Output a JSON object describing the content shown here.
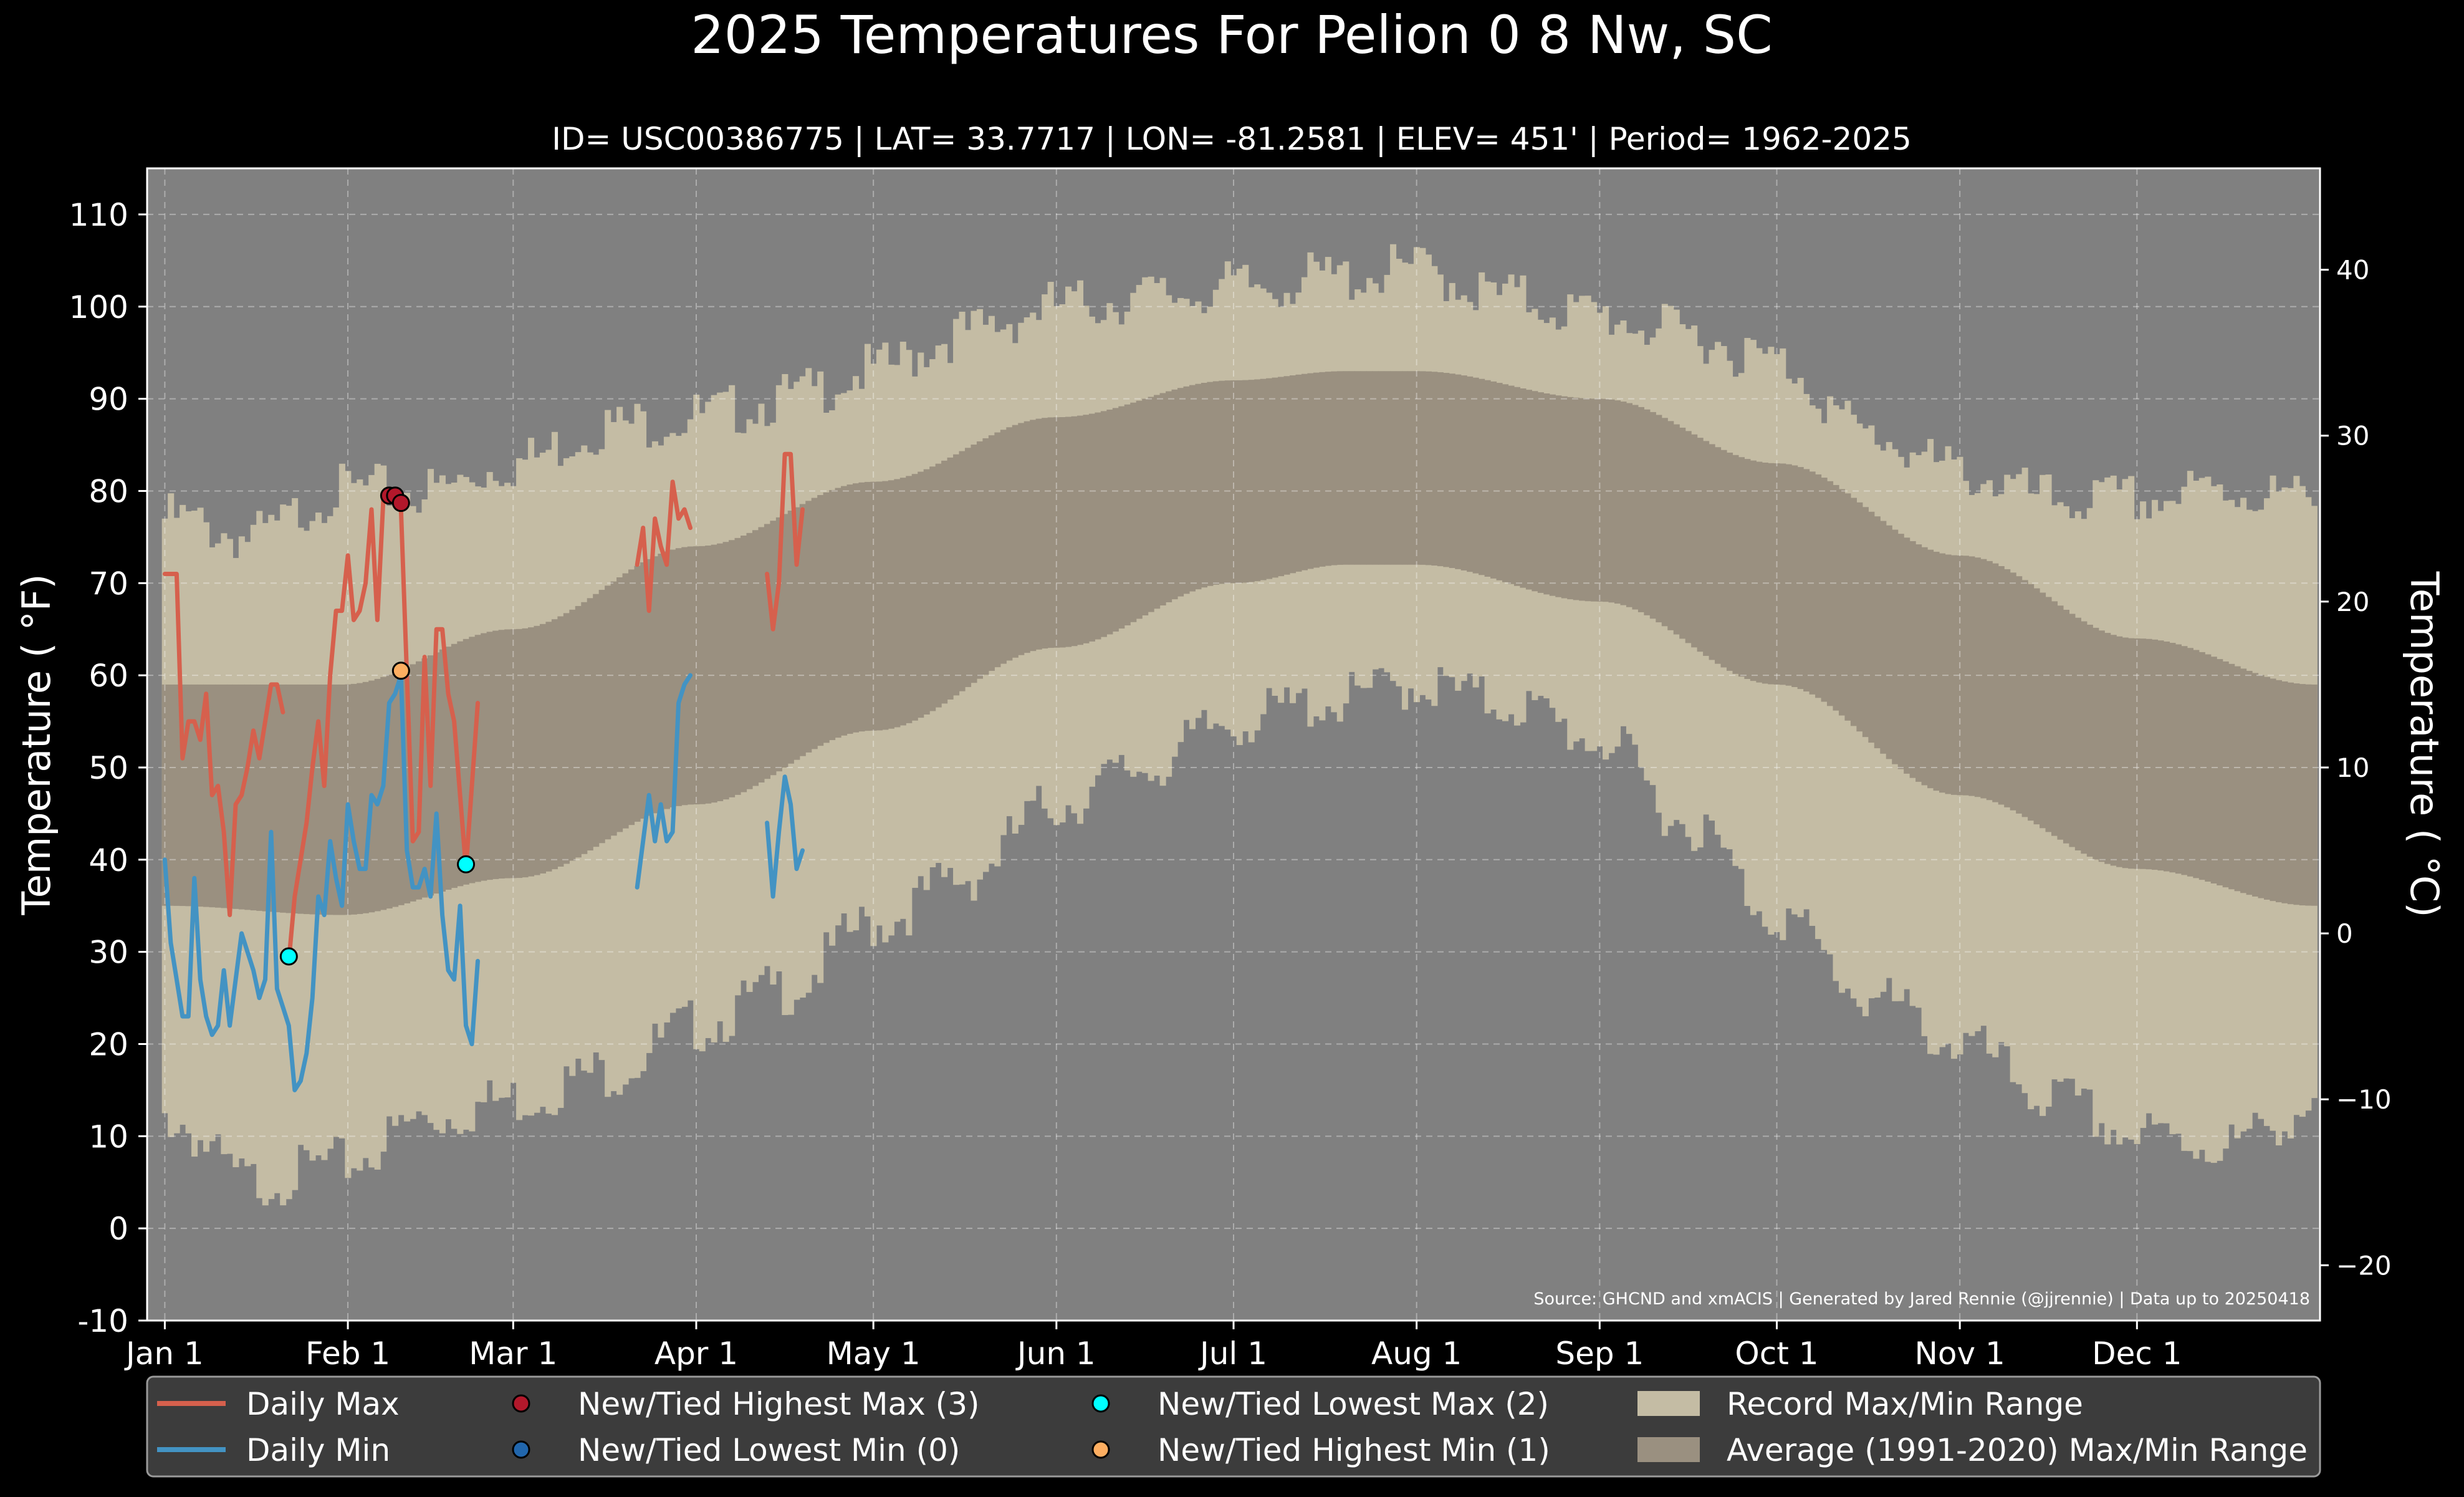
{
  "chart_data": {
    "type": "line",
    "title": "2025 Temperatures For Pelion 0 8 Nw, SC",
    "subtitle": "ID= USC00386775 | LAT= 33.7717 | LON= -81.2581 | ELEV= 451' | Period= 1962-2025",
    "ylabel": "Temperature ($^\\circ$F)",
    "ylabel_display": "Temperature ( °F)",
    "ylabel_right": "Temperature ( °C)",
    "source": "Source: GHCND and xmACIS | Generated by Jared Rennie (@jjrennie) | Data up to 20250418",
    "ylim": [
      -10,
      115
    ],
    "xlim": [
      -3,
      365
    ],
    "yticks": [
      -10,
      0,
      10,
      20,
      30,
      40,
      50,
      60,
      70,
      80,
      90,
      100,
      110
    ],
    "yticks_right": [
      -20,
      -10,
      0,
      10,
      20,
      30,
      40
    ],
    "xticks": [
      {
        "day": 0,
        "label": "Jan 1"
      },
      {
        "day": 31,
        "label": "Feb 1"
      },
      {
        "day": 59,
        "label": "Mar 1"
      },
      {
        "day": 90,
        "label": "Apr 1"
      },
      {
        "day": 120,
        "label": "May 1"
      },
      {
        "day": 151,
        "label": "Jun 1"
      },
      {
        "day": 181,
        "label": "Jul 1"
      },
      {
        "day": 212,
        "label": "Aug 1"
      },
      {
        "day": 243,
        "label": "Sep 1"
      },
      {
        "day": 273,
        "label": "Oct 1"
      },
      {
        "day": 304,
        "label": "Nov 1"
      },
      {
        "day": 334,
        "label": "Dec 1"
      }
    ],
    "grid": true,
    "legend_position": "bottom",
    "colors": {
      "background": "#808080",
      "record_band": "#c4bca4",
      "average_band": "#9a9080",
      "daily_max": "#d6604d",
      "daily_min": "#4393c3",
      "highest_max_marker": "#b2182b",
      "lowest_min_marker": "#2166ac",
      "lowest_max_marker": "#00ffff",
      "highest_min_marker": "#fdae61"
    },
    "record_max_anchors": [
      [
        0,
        77
      ],
      [
        15,
        75
      ],
      [
        30,
        80
      ],
      [
        45,
        80
      ],
      [
        59,
        83
      ],
      [
        75,
        87
      ],
      [
        90,
        88
      ],
      [
        105,
        90
      ],
      [
        120,
        93
      ],
      [
        135,
        97
      ],
      [
        151,
        100
      ],
      [
        166,
        101
      ],
      [
        181,
        102
      ],
      [
        196,
        103
      ],
      [
        212,
        104
      ],
      [
        227,
        101
      ],
      [
        243,
        99
      ],
      [
        258,
        97
      ],
      [
        273,
        94
      ],
      [
        289,
        86
      ],
      [
        304,
        82
      ],
      [
        320,
        79
      ],
      [
        334,
        79
      ],
      [
        349,
        80
      ],
      [
        364,
        79
      ]
    ],
    "record_min_anchors": [
      [
        0,
        12
      ],
      [
        15,
        5
      ],
      [
        30,
        7
      ],
      [
        45,
        12
      ],
      [
        59,
        14
      ],
      [
        75,
        17
      ],
      [
        90,
        22
      ],
      [
        105,
        26
      ],
      [
        120,
        33
      ],
      [
        135,
        38
      ],
      [
        151,
        46
      ],
      [
        166,
        50
      ],
      [
        181,
        55
      ],
      [
        196,
        57
      ],
      [
        212,
        59
      ],
      [
        227,
        57
      ],
      [
        243,
        53
      ],
      [
        258,
        44
      ],
      [
        273,
        34
      ],
      [
        289,
        25
      ],
      [
        304,
        20
      ],
      [
        320,
        14
      ],
      [
        334,
        10
      ],
      [
        349,
        9
      ],
      [
        364,
        13
      ]
    ],
    "avg_max_anchors": [
      [
        0,
        59
      ],
      [
        30,
        59
      ],
      [
        59,
        65
      ],
      [
        90,
        74
      ],
      [
        120,
        81
      ],
      [
        151,
        88
      ],
      [
        181,
        92
      ],
      [
        200,
        93
      ],
      [
        212,
        93
      ],
      [
        243,
        90
      ],
      [
        273,
        83
      ],
      [
        304,
        73
      ],
      [
        334,
        64
      ],
      [
        364,
        59
      ]
    ],
    "avg_min_anchors": [
      [
        0,
        35
      ],
      [
        30,
        34
      ],
      [
        59,
        38
      ],
      [
        90,
        46
      ],
      [
        120,
        54
      ],
      [
        151,
        63
      ],
      [
        181,
        70
      ],
      [
        200,
        72
      ],
      [
        212,
        72
      ],
      [
        243,
        68
      ],
      [
        273,
        59
      ],
      [
        304,
        47
      ],
      [
        334,
        39
      ],
      [
        364,
        35
      ]
    ],
    "series": [
      {
        "name": "Daily Max",
        "segments": [
          [
            [
              0,
              71
            ],
            [
              1,
              71
            ],
            [
              2,
              71
            ],
            [
              3,
              51
            ],
            [
              4,
              55
            ],
            [
              5,
              55
            ],
            [
              6,
              53
            ],
            [
              7,
              58
            ],
            [
              8,
              47
            ],
            [
              9,
              48
            ],
            [
              10,
              43
            ],
            [
              11,
              34
            ],
            [
              12,
              46
            ],
            [
              13,
              47
            ],
            [
              14,
              50
            ],
            [
              15,
              54
            ],
            [
              16,
              51
            ],
            [
              17,
              55
            ],
            [
              18,
              59
            ],
            [
              19,
              59
            ],
            [
              20,
              56
            ]
          ],
          [
            [
              21,
              29
            ],
            [
              22,
              36
            ],
            [
              23,
              40
            ],
            [
              24,
              44
            ],
            [
              25,
              50
            ],
            [
              26,
              55
            ],
            [
              27,
              48
            ],
            [
              28,
              60
            ],
            [
              29,
              67
            ],
            [
              30,
              67
            ],
            [
              31,
              73
            ],
            [
              32,
              66
            ],
            [
              33,
              67
            ],
            [
              34,
              70
            ],
            [
              35,
              78
            ],
            [
              36,
              66
            ],
            [
              37,
              79
            ],
            [
              38,
              79
            ],
            [
              39,
              79
            ],
            [
              40,
              78
            ],
            [
              41,
              60
            ],
            [
              42,
              42
            ],
            [
              43,
              43
            ],
            [
              44,
              62
            ],
            [
              45,
              48
            ],
            [
              46,
              65
            ],
            [
              47,
              65
            ],
            [
              48,
              58
            ],
            [
              49,
              55
            ],
            [
              50,
              47
            ],
            [
              51,
              39
            ],
            [
              52,
              48
            ],
            [
              53,
              57
            ]
          ],
          [
            [
              80,
              72
            ],
            [
              81,
              76
            ],
            [
              82,
              67
            ],
            [
              83,
              77
            ],
            [
              84,
              74
            ],
            [
              85,
              72
            ],
            [
              86,
              81
            ],
            [
              87,
              77
            ],
            [
              88,
              78
            ],
            [
              89,
              76
            ]
          ],
          [
            [
              102,
              71
            ],
            [
              103,
              65
            ],
            [
              104,
              70
            ],
            [
              105,
              84
            ],
            [
              106,
              84
            ],
            [
              107,
              72
            ],
            [
              108,
              78
            ]
          ]
        ]
      },
      {
        "name": "Daily Min",
        "segments": [
          [
            [
              0,
              40
            ],
            [
              1,
              31
            ],
            [
              2,
              27
            ],
            [
              3,
              23
            ],
            [
              4,
              23
            ],
            [
              5,
              38
            ],
            [
              6,
              27
            ],
            [
              7,
              23
            ],
            [
              8,
              21
            ],
            [
              9,
              22
            ],
            [
              10,
              28
            ],
            [
              11,
              22
            ],
            [
              12,
              27
            ],
            [
              13,
              32
            ],
            [
              14,
              30
            ],
            [
              15,
              28
            ],
            [
              16,
              25
            ],
            [
              17,
              27
            ],
            [
              18,
              43
            ],
            [
              19,
              26
            ],
            [
              20,
              24
            ],
            [
              21,
              22
            ],
            [
              22,
              15
            ],
            [
              23,
              16
            ],
            [
              24,
              19
            ],
            [
              25,
              25
            ],
            [
              26,
              36
            ],
            [
              27,
              34
            ],
            [
              28,
              42
            ],
            [
              29,
              38
            ],
            [
              30,
              35
            ],
            [
              31,
              46
            ],
            [
              32,
              42
            ],
            [
              33,
              39
            ],
            [
              34,
              39
            ],
            [
              35,
              47
            ],
            [
              36,
              46
            ],
            [
              37,
              48
            ],
            [
              38,
              57
            ],
            [
              39,
              58
            ],
            [
              40,
              60
            ],
            [
              41,
              41
            ],
            [
              42,
              37
            ],
            [
              43,
              37
            ],
            [
              44,
              39
            ],
            [
              45,
              36
            ],
            [
              46,
              45
            ],
            [
              47,
              34
            ],
            [
              48,
              28
            ],
            [
              49,
              27
            ],
            [
              50,
              35
            ],
            [
              51,
              22
            ],
            [
              52,
              20
            ],
            [
              53,
              29
            ]
          ],
          [
            [
              80,
              37
            ],
            [
              81,
              42
            ],
            [
              82,
              47
            ],
            [
              83,
              42
            ],
            [
              84,
              46
            ],
            [
              85,
              42
            ],
            [
              86,
              43
            ],
            [
              87,
              57
            ],
            [
              88,
              59
            ],
            [
              89,
              60
            ]
          ],
          [
            [
              102,
              44
            ],
            [
              103,
              36
            ],
            [
              104,
              43
            ],
            [
              105,
              49
            ],
            [
              106,
              46
            ],
            [
              107,
              39
            ],
            [
              108,
              41
            ]
          ]
        ]
      }
    ],
    "record_markers": [
      {
        "type": "highest_max",
        "day": 38,
        "value": 79.5
      },
      {
        "type": "highest_max",
        "day": 39,
        "value": 79.5
      },
      {
        "type": "highest_max",
        "day": 40,
        "value": 78.7
      },
      {
        "type": "lowest_max",
        "day": 21,
        "value": 29.5
      },
      {
        "type": "lowest_max",
        "day": 51,
        "value": 39.5
      },
      {
        "type": "highest_min",
        "day": 40,
        "value": 60.5
      }
    ],
    "legend": [
      {
        "label": "Daily Max",
        "kind": "line",
        "color_key": "daily_max"
      },
      {
        "label": "Daily Min",
        "kind": "line",
        "color_key": "daily_min"
      },
      {
        "label": "New/Tied Highest Max (3)",
        "kind": "marker",
        "color_key": "highest_max_marker"
      },
      {
        "label": "New/Tied Lowest Min (0)",
        "kind": "marker",
        "color_key": "lowest_min_marker"
      },
      {
        "label": "New/Tied Lowest Max (2)",
        "kind": "marker",
        "color_key": "lowest_max_marker"
      },
      {
        "label": "New/Tied Highest Min (1)",
        "kind": "marker",
        "color_key": "highest_min_marker"
      },
      {
        "label": "Record Max/Min Range",
        "kind": "patch",
        "color_key": "record_band"
      },
      {
        "label": "Average (1991-2020) Max/Min Range",
        "kind": "patch",
        "color_key": "average_band"
      }
    ]
  }
}
